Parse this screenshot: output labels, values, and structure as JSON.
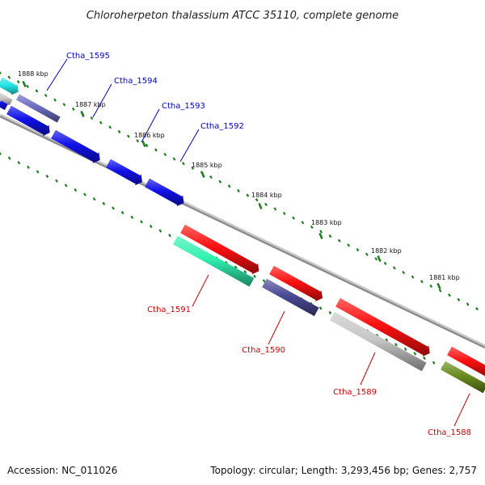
{
  "title": "Chloroherpeton thalassium ATCC 35110, complete genome",
  "footer": {
    "accession": "Accession: NC_011026",
    "summary": "Topology: circular; Length: 3,293,456 bp; Genes: 2,757"
  },
  "colors": {
    "backbone": "#888888",
    "tick": "#1e7f1e",
    "forward_label": "#0000cc",
    "reverse_label": "#cc0000"
  },
  "scale_ticks": [
    {
      "label": "1888 kbp"
    },
    {
      "label": "1887 kbp"
    },
    {
      "label": "1886 kbp"
    },
    {
      "label": "1885 kbp"
    },
    {
      "label": "1884 kbp"
    },
    {
      "label": "1883 kbp"
    },
    {
      "label": "1882 kbp"
    },
    {
      "label": "1881 kbp"
    }
  ],
  "genes": [
    {
      "name": "Ctha_1595",
      "strand": "forward",
      "color": "#1010e8"
    },
    {
      "name": "Ctha_1594",
      "strand": "forward",
      "color": "#1010e8"
    },
    {
      "name": "Ctha_1593",
      "strand": "forward",
      "color": "#1010e8"
    },
    {
      "name": "Ctha_1592",
      "strand": "forward",
      "color": "#1010e8"
    },
    {
      "name": "Ctha_1591",
      "strand": "reverse",
      "color": "#ff1010"
    },
    {
      "name": "Ctha_1590",
      "strand": "reverse",
      "color": "#ff1010"
    },
    {
      "name": "Ctha_1589",
      "strand": "reverse",
      "color": "#ff1010"
    },
    {
      "name": "Ctha_1588",
      "strand": "reverse",
      "color": "#ff1010"
    }
  ],
  "features": [
    {
      "name": "cyan-feature",
      "color": "#22e5e5"
    },
    {
      "name": "slate-feature",
      "color": "#6c6cc0"
    },
    {
      "name": "gray-feature",
      "color": "#c8c8c8"
    },
    {
      "name": "aqua-feature",
      "color": "#2ff0b0"
    },
    {
      "name": "purple-feature",
      "color": "#4a4a96"
    },
    {
      "name": "silver-feature",
      "color": "#c8c8c8"
    },
    {
      "name": "olive-feature",
      "color": "#6a8c1e"
    }
  ]
}
